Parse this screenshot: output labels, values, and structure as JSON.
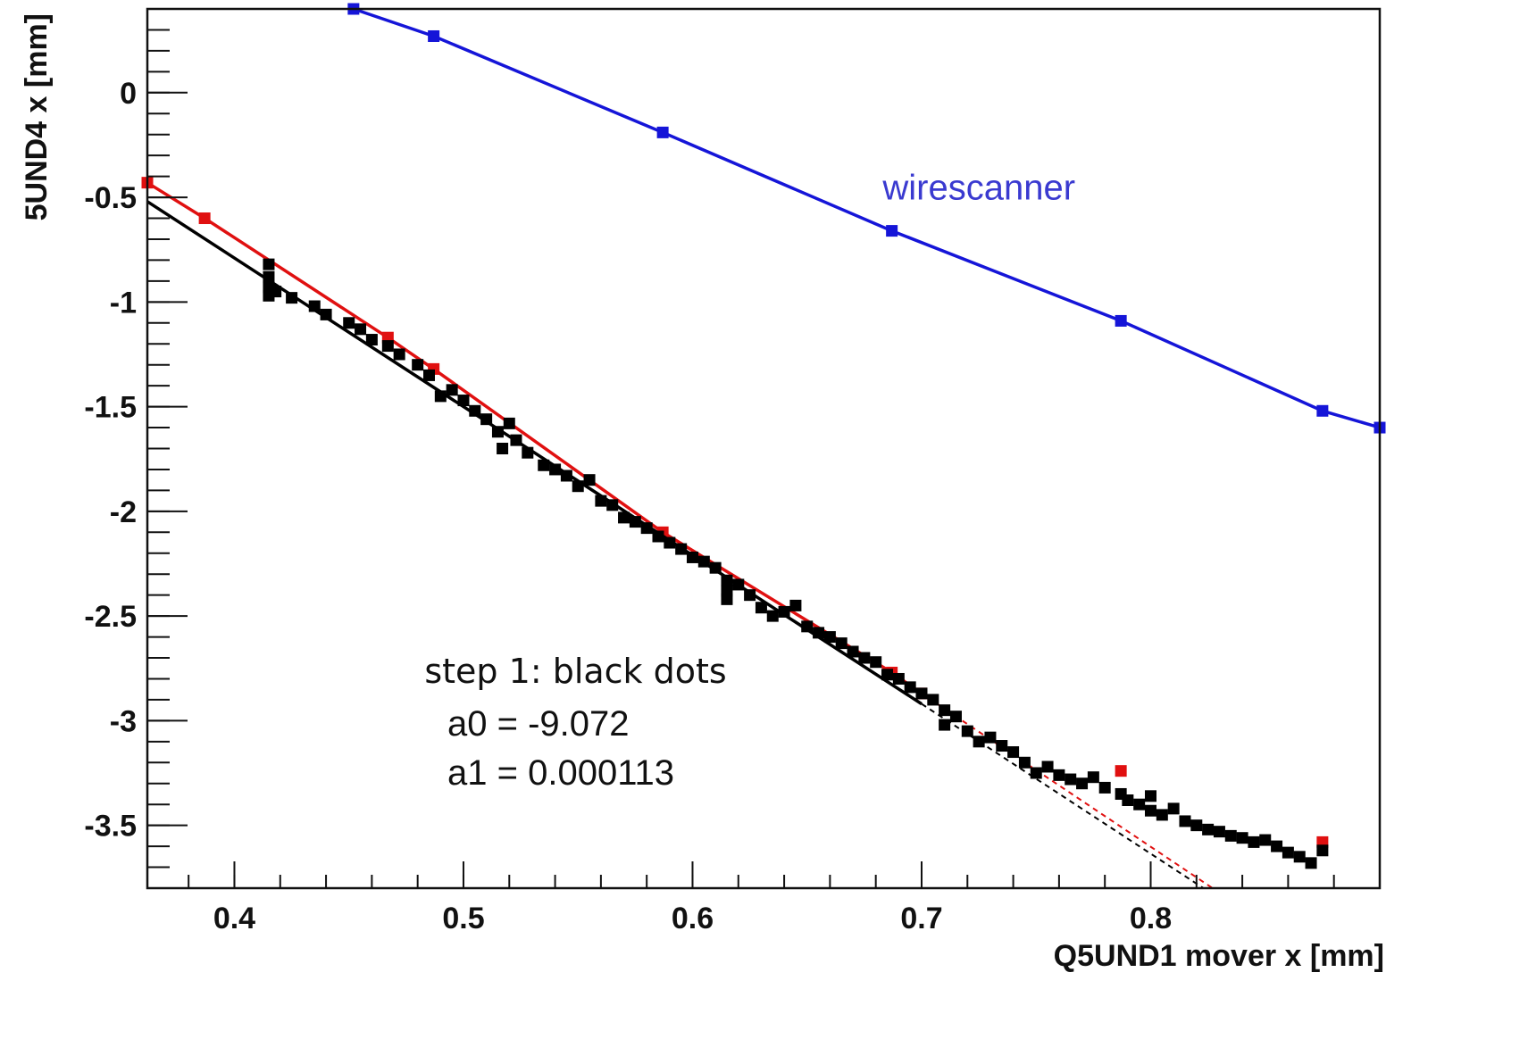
{
  "chart_data": {
    "type": "scatter",
    "xlabel": "Q5UND1 mover x [mm]",
    "ylabel": "5UND4 x [mm]",
    "xlim": [
      0.362,
      0.9
    ],
    "ylim": [
      -3.8,
      0.4
    ],
    "xticks": [
      {
        "value": 0.4,
        "label": "0.4"
      },
      {
        "value": 0.5,
        "label": "0.5"
      },
      {
        "value": 0.6,
        "label": "0.6"
      },
      {
        "value": 0.7,
        "label": "0.7"
      },
      {
        "value": 0.8,
        "label": "0.8"
      }
    ],
    "yticks": [
      {
        "value": 0,
        "label": "0"
      },
      {
        "value": -0.5,
        "label": "-0.5"
      },
      {
        "value": -1,
        "label": "-1"
      },
      {
        "value": -1.5,
        "label": "-1.5"
      },
      {
        "value": -2,
        "label": "-2"
      },
      {
        "value": -2.5,
        "label": "-2.5"
      },
      {
        "value": -3,
        "label": "-3"
      },
      {
        "value": -3.5,
        "label": "-3.5"
      }
    ],
    "grid": false,
    "annotations": {
      "series_label": "wirescanner",
      "step_text": "step 1: black dots",
      "a0_text": "a0 = -9.072",
      "a1_text": "a1 = 0.000113"
    },
    "series": [
      {
        "color": "#1515d8",
        "style": "line+markers",
        "x": [
          0.452,
          0.487,
          0.587,
          0.687,
          0.787,
          0.875,
          0.9
        ],
        "y": [
          0.4,
          0.27,
          -0.19,
          -0.66,
          -1.09,
          -1.52,
          -1.6
        ]
      },
      {
        "color": "#e01010",
        "style": "line+markers",
        "x": [
          0.362,
          0.387,
          0.467,
          0.487,
          0.587,
          0.687,
          0.7
        ],
        "y": [
          -0.43,
          -0.6,
          -1.17,
          -1.32,
          -2.1,
          -2.77,
          -2.87
        ]
      },
      {
        "color": "#000000",
        "style": "line",
        "x": [
          0.362,
          0.7
        ],
        "y": [
          -0.52,
          -2.92
        ]
      },
      {
        "color": "#e01010",
        "style": "dashed",
        "x": [
          0.7,
          0.827
        ],
        "y": [
          -2.87,
          -3.8
        ]
      },
      {
        "color": "#000000",
        "style": "dashed",
        "x": [
          0.7,
          0.823
        ],
        "y": [
          -2.92,
          -3.8
        ]
      },
      {
        "color": "#e01010",
        "style": "markers",
        "x": [
          0.787,
          0.875
        ],
        "y": [
          -3.24,
          -3.58
        ]
      },
      {
        "color": "#000000",
        "style": "markers",
        "x": [
          0.415,
          0.415,
          0.415,
          0.415,
          0.418,
          0.425,
          0.435,
          0.44,
          0.45,
          0.455,
          0.46,
          0.467,
          0.472,
          0.48,
          0.485,
          0.49,
          0.495,
          0.5,
          0.505,
          0.51,
          0.515,
          0.517,
          0.52,
          0.523,
          0.528,
          0.535,
          0.54,
          0.545,
          0.55,
          0.555,
          0.56,
          0.565,
          0.57,
          0.575,
          0.58,
          0.585,
          0.59,
          0.595,
          0.6,
          0.605,
          0.61,
          0.615,
          0.615,
          0.615,
          0.62,
          0.625,
          0.63,
          0.635,
          0.64,
          0.645,
          0.65,
          0.655,
          0.66,
          0.665,
          0.67,
          0.675,
          0.68,
          0.685,
          0.69,
          0.695,
          0.7,
          0.705,
          0.71,
          0.71,
          0.715,
          0.72,
          0.725,
          0.73,
          0.735,
          0.74,
          0.745,
          0.75,
          0.755,
          0.76,
          0.765,
          0.77,
          0.775,
          0.78,
          0.787,
          0.79,
          0.795,
          0.8,
          0.8,
          0.805,
          0.81,
          0.815,
          0.82,
          0.825,
          0.83,
          0.835,
          0.84,
          0.845,
          0.85,
          0.855,
          0.86,
          0.865,
          0.87,
          0.875
        ],
        "y": [
          -0.82,
          -0.88,
          -0.93,
          -0.97,
          -0.95,
          -0.98,
          -1.02,
          -1.06,
          -1.1,
          -1.13,
          -1.18,
          -1.21,
          -1.25,
          -1.3,
          -1.35,
          -1.45,
          -1.42,
          -1.47,
          -1.52,
          -1.56,
          -1.62,
          -1.7,
          -1.58,
          -1.66,
          -1.72,
          -1.78,
          -1.8,
          -1.83,
          -1.88,
          -1.85,
          -1.95,
          -1.97,
          -2.03,
          -2.05,
          -2.08,
          -2.12,
          -2.15,
          -2.18,
          -2.22,
          -2.24,
          -2.27,
          -2.33,
          -2.38,
          -2.42,
          -2.35,
          -2.4,
          -2.46,
          -2.5,
          -2.48,
          -2.45,
          -2.55,
          -2.58,
          -2.6,
          -2.63,
          -2.67,
          -2.7,
          -2.72,
          -2.78,
          -2.8,
          -2.84,
          -2.87,
          -2.9,
          -2.95,
          -3.02,
          -2.98,
          -3.05,
          -3.1,
          -3.08,
          -3.12,
          -3.15,
          -3.2,
          -3.25,
          -3.22,
          -3.26,
          -3.28,
          -3.3,
          -3.27,
          -3.32,
          -3.35,
          -3.38,
          -3.4,
          -3.36,
          -3.43,
          -3.45,
          -3.42,
          -3.48,
          -3.5,
          -3.52,
          -3.53,
          -3.55,
          -3.56,
          -3.58,
          -3.57,
          -3.6,
          -3.63,
          -3.65,
          -3.68,
          -3.62
        ]
      }
    ]
  }
}
